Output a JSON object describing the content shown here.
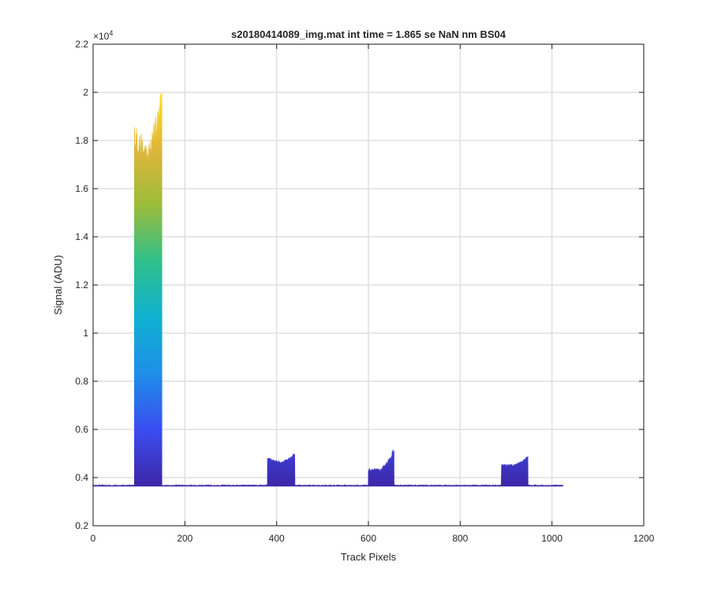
{
  "chart_data": {
    "type": "area",
    "title": "s20180414089_img.mat int time = 1.865 se  NaN nm BS04",
    "xlabel": "Track Pixels",
    "ylabel": "Signal (ADU)",
    "xlim": [
      0,
      1200
    ],
    "ylim": [
      0.2,
      2.2
    ],
    "y_exponent_label": "×10",
    "y_exponent_power": "4",
    "x_ticks": [
      0,
      200,
      400,
      600,
      800,
      1000,
      1200
    ],
    "y_ticks": [
      0.2,
      0.4,
      0.6,
      0.8,
      1,
      1.2,
      1.4,
      1.6,
      1.8,
      2,
      2.2
    ],
    "x_tick_labels": [
      "0",
      "200",
      "400",
      "600",
      "800",
      "1000",
      "1200"
    ],
    "y_tick_labels": [
      "0.2",
      "0.4",
      "0.6",
      "0.8",
      "1",
      "1.2",
      "1.4",
      "1.6",
      "1.8",
      "2",
      "2.2"
    ],
    "grid": true,
    "colormap": "parula",
    "colormap_stops": [
      "#3e26a8",
      "#3a4df0",
      "#1e8fe8",
      "#0fb1d0",
      "#2fc08a",
      "#9cbd3a",
      "#e0b53a",
      "#fbe31a"
    ],
    "baseline": 0.365,
    "x_end": 1024,
    "segments": [
      {
        "x": [
          0,
          90
        ],
        "y_start": 0.365,
        "y_end": 0.37,
        "peak": 0.37
      },
      {
        "x": [
          90,
          150
        ],
        "y_start": 1.8,
        "y_end": 1.95,
        "peak": 2.0,
        "dip": 1.7
      },
      {
        "x": [
          150,
          380
        ],
        "y_start": 0.365,
        "y_end": 0.365,
        "peak": 0.37
      },
      {
        "x": [
          380,
          440
        ],
        "y_start": 0.48,
        "y_end": 0.49,
        "peak": 0.5,
        "dip": 0.46
      },
      {
        "x": [
          440,
          600
        ],
        "y_start": 0.365,
        "y_end": 0.365,
        "peak": 0.37
      },
      {
        "x": [
          600,
          656
        ],
        "y_start": 0.43,
        "y_end": 0.5,
        "peak": 0.515,
        "dip": 0.43
      },
      {
        "x": [
          656,
          890
        ],
        "y_start": 0.365,
        "y_end": 0.365,
        "peak": 0.37
      },
      {
        "x": [
          890,
          948
        ],
        "y_start": 0.45,
        "y_end": 0.48,
        "peak": 0.49,
        "dip": 0.45
      },
      {
        "x": [
          948,
          1024
        ],
        "y_start": 0.365,
        "y_end": 0.365,
        "peak": 0.37
      }
    ]
  }
}
